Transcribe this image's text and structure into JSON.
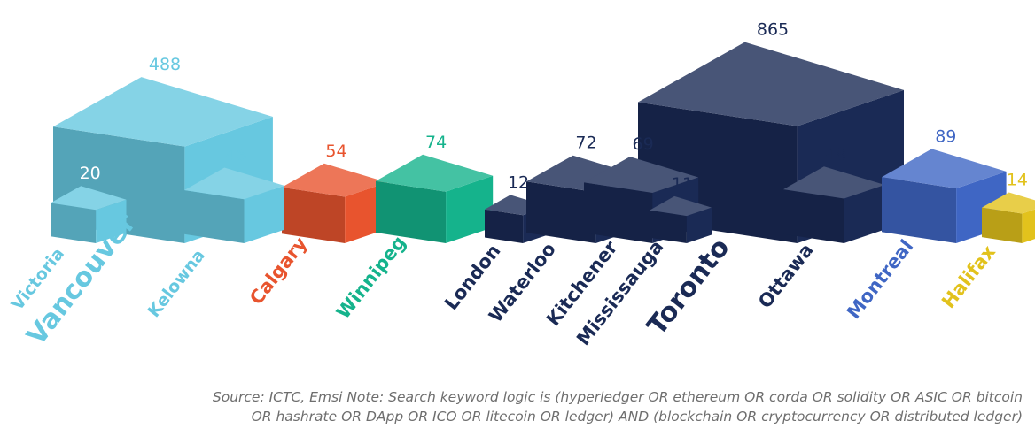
{
  "chart_data": {
    "type": "bar",
    "categories": [
      "Victoria",
      "Vancouver",
      "Kelowna",
      "Calgary",
      "Winnipeg",
      "London",
      "Waterloo",
      "Kitchener",
      "Mississauga",
      "Toronto",
      "Ottawa",
      "Montreal",
      "Halifax"
    ],
    "values": [
      20,
      488,
      46,
      54,
      74,
      12,
      72,
      69,
      11,
      865,
      48,
      89,
      14
    ],
    "series_colors": {
      "Victoria": "#67c8e0",
      "Vancouver": "#67c8e0",
      "Kelowna": "#67c8e0",
      "Calgary": "#e8542e",
      "Winnipeg": "#15b38c",
      "London": "#1a2a55",
      "Waterloo": "#1a2a55",
      "Kitchener": "#1a2a55",
      "Mississauga": "#1a2a55",
      "Toronto": "#1a2a55",
      "Ottawa": "#1a2a55",
      "Montreal": "#3f66c4",
      "Halifax": "#e2c21c"
    }
  },
  "source_note": {
    "line1": "Source: ICTC, Emsi  Note: Search keyword logic is (hyperledger OR ethereum OR corda OR solidity OR ASIC OR bitcoin",
    "line2": "OR hashrate OR DApp OR ICO OR litecoin OR ledger) AND (blockchain OR cryptocurrency OR distributed ledger)"
  }
}
